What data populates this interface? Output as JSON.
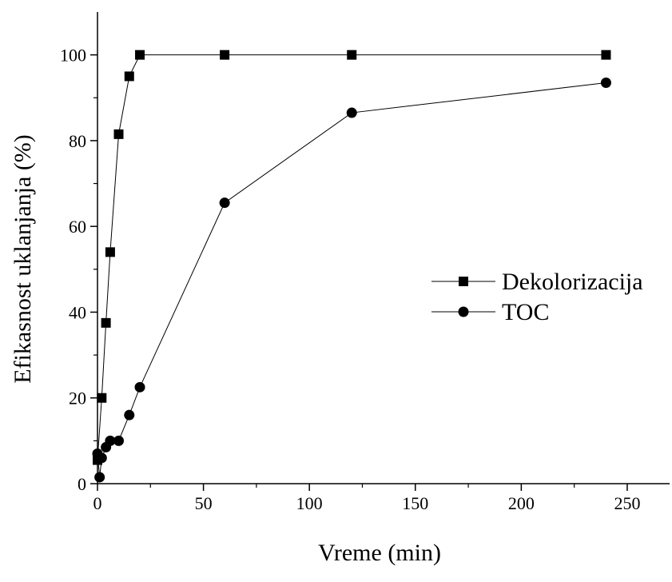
{
  "chart_data": {
    "type": "line",
    "xlabel": "Vreme (min)",
    "ylabel": "Efikasnost uklanjanja (%)",
    "xlim": [
      0,
      270
    ],
    "ylim": [
      0,
      110
    ],
    "xticks": [
      0,
      50,
      100,
      150,
      200,
      250
    ],
    "yticks": [
      0,
      20,
      40,
      60,
      80,
      100
    ],
    "legend_position": "center-right",
    "grid": false,
    "series": [
      {
        "name": "Dekolorizacija",
        "marker": "square",
        "color": "#000000",
        "x": [
          0,
          2,
          4,
          6,
          10,
          15,
          20,
          60,
          120,
          240
        ],
        "y": [
          5.5,
          20,
          37.5,
          54,
          81.5,
          95,
          100,
          100,
          100,
          100
        ]
      },
      {
        "name": "TOC",
        "marker": "circle",
        "color": "#000000",
        "x": [
          0,
          1,
          2,
          4,
          6,
          10,
          15,
          20,
          60,
          120,
          240
        ],
        "y": [
          7,
          1.5,
          6,
          8.5,
          10,
          10,
          16,
          22.5,
          65.5,
          86.5,
          93.5
        ]
      }
    ]
  }
}
